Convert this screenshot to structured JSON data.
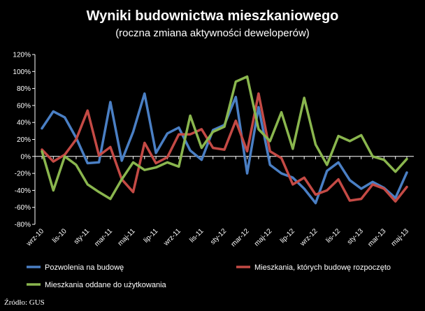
{
  "chart_data": {
    "type": "line",
    "title": "Wyniki budownictwa mieszkaniowego",
    "subtitle": "(roczna zmiana aktywności deweloperów)",
    "ylim": [
      -80,
      120
    ],
    "yticks": [
      "120%",
      "100%",
      "80%",
      "60%",
      "40%",
      "20%",
      "0%",
      "-20%",
      "-40%",
      "-60%",
      "-80%"
    ],
    "grid": false,
    "legend_position": "bottom",
    "x_tick_labels": [
      "wrz-10",
      "lis-10",
      "sty-11",
      "mar-11",
      "maj-11",
      "lip-11",
      "wrz-11",
      "lis-11",
      "sty-12",
      "mar-12",
      "maj-12",
      "lip-12",
      "wrz-12",
      "lis-12",
      "sty-13",
      "mar-13",
      "maj-13"
    ],
    "x": [
      "wrz-10",
      "paź-10",
      "lis-10",
      "gru-10",
      "sty-11",
      "lut-11",
      "mar-11",
      "kwi-11",
      "maj-11",
      "cze-11",
      "lip-11",
      "sie-11",
      "wrz-11",
      "paź-11",
      "lis-11",
      "gru-11",
      "sty-12",
      "lut-12",
      "mar-12",
      "kwi-12",
      "maj-12",
      "cze-12",
      "lip-12",
      "sie-12",
      "wrz-12",
      "paź-12",
      "lis-12",
      "gru-12",
      "sty-13",
      "lut-13",
      "mar-13",
      "kwi-13",
      "maj-13"
    ],
    "series": [
      {
        "name": "Pozwolenia na budowę",
        "color": "#4a7fc4",
        "values": [
          33,
          53,
          46,
          22,
          -8,
          -7,
          64,
          -5,
          29,
          74,
          4,
          27,
          34,
          7,
          -4,
          31,
          37,
          70,
          -20,
          58,
          -10,
          -20,
          -25,
          -38,
          -55,
          -17,
          -7,
          -28,
          -38,
          -30,
          -37,
          -49,
          -19
        ]
      },
      {
        "name": "Mieszkania, których budowę rozpoczęto",
        "color": "#c44a45",
        "values": [
          8,
          -6,
          2,
          20,
          54,
          1,
          11,
          -27,
          -42,
          16,
          -8,
          -1,
          26,
          26,
          32,
          10,
          8,
          42,
          6,
          74,
          6,
          -2,
          -33,
          -25,
          -45,
          -40,
          -27,
          -52,
          -50,
          -33,
          -38,
          -53,
          -36
        ]
      },
      {
        "name": "Mieszkania oddane  do użytkowania",
        "color": "#8ab64e",
        "values": [
          6,
          -40,
          0,
          -10,
          -33,
          -42,
          -50,
          -27,
          -7,
          -16,
          -13,
          -7,
          -12,
          48,
          10,
          29,
          35,
          88,
          94,
          32,
          18,
          52,
          9,
          69,
          14,
          -10,
          24,
          18,
          25,
          0,
          -4,
          -18,
          -3
        ]
      }
    ],
    "source": "Źródło: GUS"
  }
}
